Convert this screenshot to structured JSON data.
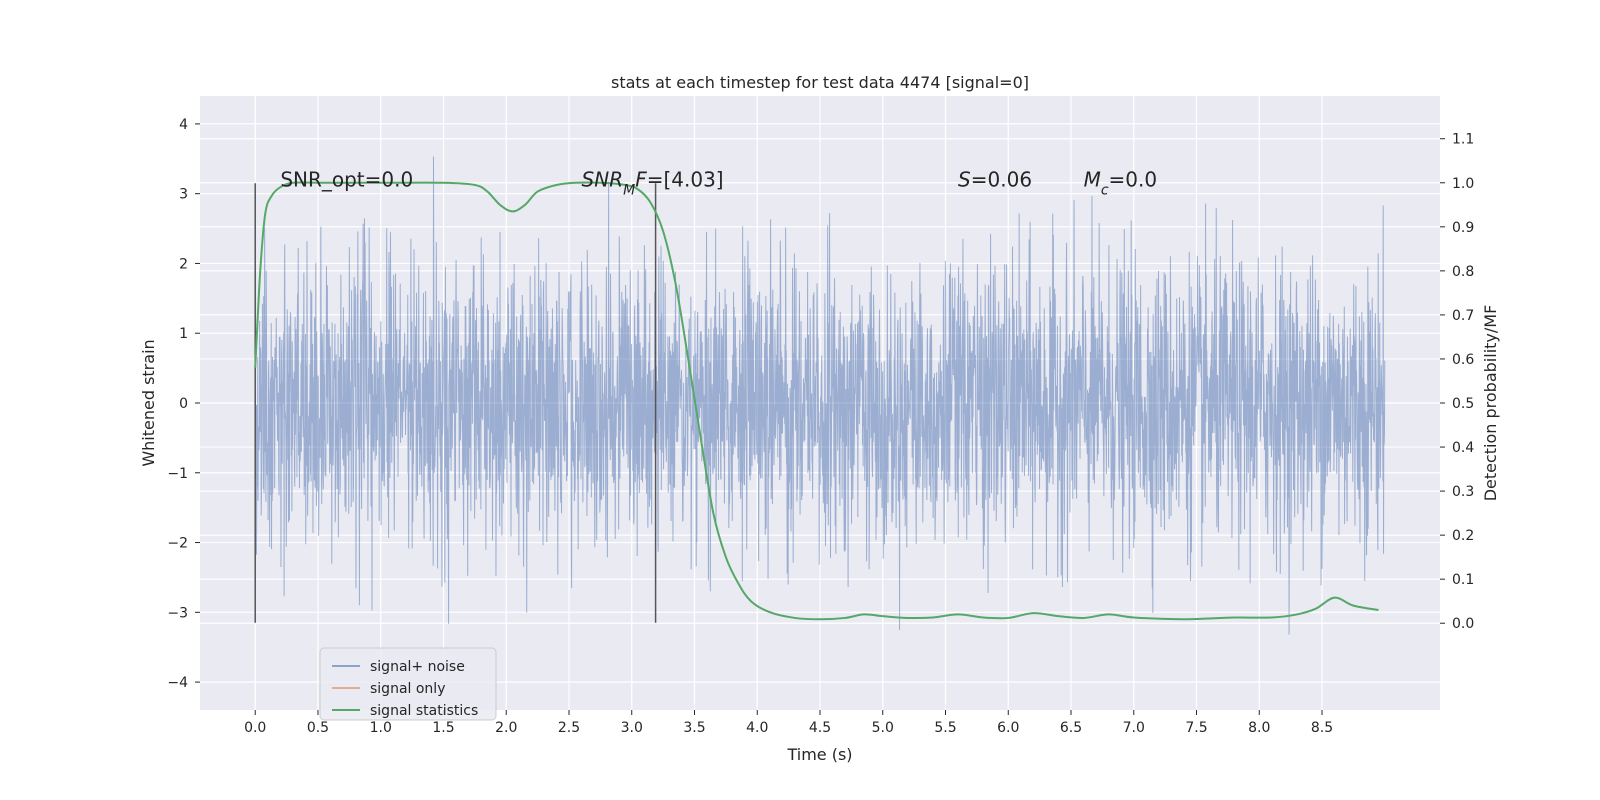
{
  "chart_data": {
    "type": "line",
    "title": "stats at each timestep for test data 4474 [signal=0]",
    "xlabel": "Time (s)",
    "ylabel": "Whitened strain",
    "y2label": "Detection probability/MF",
    "xlim": [
      -0.44,
      9.44
    ],
    "ylim": [
      -4.4,
      4.4
    ],
    "y2lim": [
      -0.197,
      1.197
    ],
    "xticks": [
      0.0,
      0.5,
      1.0,
      1.5,
      2.0,
      2.5,
      3.0,
      3.5,
      4.0,
      4.5,
      5.0,
      5.5,
      6.0,
      6.5,
      7.0,
      7.5,
      8.0,
      8.5
    ],
    "xtick_labels": [
      "0.0",
      "0.5",
      "1.0",
      "1.5",
      "2.0",
      "2.5",
      "3.0",
      "3.5",
      "4.0",
      "4.5",
      "5.0",
      "5.5",
      "6.0",
      "6.5",
      "7.0",
      "7.5",
      "8.0",
      "8.5"
    ],
    "yticks": [
      -4,
      -3,
      -2,
      -1,
      0,
      1,
      2,
      3,
      4
    ],
    "ytick_labels": [
      "−4",
      "−3",
      "−2",
      "−1",
      "0",
      "1",
      "2",
      "3",
      "4"
    ],
    "y2ticks": [
      0.0,
      0.1,
      0.2,
      0.3,
      0.4,
      0.5,
      0.6,
      0.7,
      0.8,
      0.9,
      1.0,
      1.1
    ],
    "y2tick_labels": [
      "0.0",
      "0.1",
      "0.2",
      "0.3",
      "0.4",
      "0.5",
      "0.6",
      "0.7",
      "0.8",
      "0.9",
      "1.0",
      "1.1"
    ],
    "grid": true,
    "legend_position": "lower-left",
    "series": [
      {
        "name": "signal+ noise",
        "color": "#4c72b0",
        "kind": "noise",
        "x_range": [
          0.0,
          9.0
        ],
        "typical_amplitude": 1.0,
        "peak_amplitude": 3.9
      },
      {
        "name": "signal only",
        "color": "#dd8452",
        "kind": "line",
        "x": [],
        "y": []
      },
      {
        "name": "signal statistics",
        "color": "#55a868",
        "axis": "right",
        "x": [
          0.0,
          0.04,
          0.08,
          0.13,
          0.2,
          0.3,
          0.5,
          1.0,
          1.5,
          1.75,
          1.85,
          1.95,
          2.05,
          2.15,
          2.25,
          2.4,
          2.55,
          2.75,
          2.95,
          3.05,
          3.15,
          3.25,
          3.35,
          3.45,
          3.55,
          3.65,
          3.75,
          3.85,
          3.95,
          4.1,
          4.3,
          4.5,
          4.7,
          4.85,
          5.0,
          5.2,
          5.4,
          5.6,
          5.8,
          6.0,
          6.2,
          6.4,
          6.6,
          6.8,
          7.0,
          7.4,
          7.8,
          8.1,
          8.3,
          8.45,
          8.6,
          8.75,
          8.95
        ],
        "y": [
          0.58,
          0.8,
          0.93,
          0.97,
          0.99,
          1.0,
          1.0,
          1.0,
          1.0,
          0.995,
          0.98,
          0.95,
          0.935,
          0.95,
          0.98,
          0.995,
          1.0,
          1.0,
          0.995,
          0.985,
          0.955,
          0.89,
          0.77,
          0.6,
          0.42,
          0.25,
          0.15,
          0.09,
          0.05,
          0.025,
          0.012,
          0.009,
          0.012,
          0.02,
          0.016,
          0.012,
          0.013,
          0.02,
          0.013,
          0.012,
          0.023,
          0.016,
          0.012,
          0.02,
          0.013,
          0.009,
          0.013,
          0.013,
          0.02,
          0.033,
          0.058,
          0.04,
          0.03
        ]
      }
    ],
    "vlines": [
      {
        "x": 0.0,
        "ymin": -3.15,
        "ymax": 3.15,
        "color": "#555555"
      },
      {
        "x": 3.19,
        "ymin": -3.15,
        "ymax": 3.15,
        "color": "#555555"
      }
    ],
    "annotations": [
      {
        "text": "SNR_opt=0.0",
        "x": 0.2,
        "y": 3.1
      },
      {
        "text": "SNR_MF=[4.03]",
        "x": 2.6,
        "y": 3.1
      },
      {
        "text": "S=0.06",
        "x": 5.6,
        "y": 3.1
      },
      {
        "text": "M_c=0.0",
        "x": 6.6,
        "y": 3.1
      }
    ]
  }
}
